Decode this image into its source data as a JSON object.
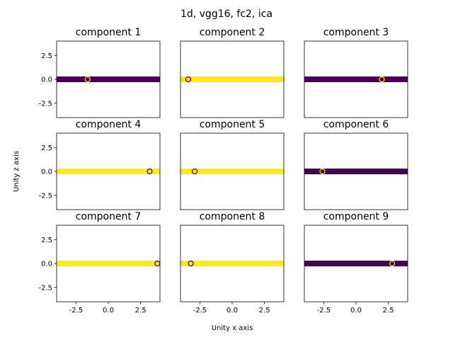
{
  "figure": {
    "suptitle": "1d, vgg16, fc2, ica",
    "xlabel": "Unity x axis",
    "ylabel": "Unity z axis"
  },
  "colors": {
    "purple": "#440154",
    "yellow": "#fde725"
  },
  "chart_data": [
    {
      "type": "scatter",
      "title": "component 1",
      "xlim": [
        -4,
        4
      ],
      "ylim": [
        -4,
        4
      ],
      "xticks": [],
      "yticks": [
        "-2.5",
        "0.0",
        "2.5"
      ],
      "band_color": "#440154",
      "marker_x": -1.6,
      "marker_y": 0.0,
      "marker_color": "#fde725"
    },
    {
      "type": "scatter",
      "title": "component 2",
      "xlim": [
        -4,
        4
      ],
      "ylim": [
        -4,
        4
      ],
      "xticks": [],
      "yticks": [],
      "band_color": "#fde725",
      "marker_x": -3.4,
      "marker_y": 0.0,
      "marker_color": "#440154"
    },
    {
      "type": "scatter",
      "title": "component 3",
      "xlim": [
        -4,
        4
      ],
      "ylim": [
        -4,
        4
      ],
      "xticks": [],
      "yticks": [],
      "band_color": "#440154",
      "marker_x": 2.0,
      "marker_y": 0.0,
      "marker_color": "#fde725"
    },
    {
      "type": "scatter",
      "title": "component 4",
      "xlim": [
        -4,
        4
      ],
      "ylim": [
        -4,
        4
      ],
      "xticks": [],
      "yticks": [
        "-2.5",
        "0.0",
        "2.5"
      ],
      "band_color": "#fde725",
      "marker_x": 3.2,
      "marker_y": 0.0,
      "marker_color": "#440154"
    },
    {
      "type": "scatter",
      "title": "component 5",
      "xlim": [
        -4,
        4
      ],
      "ylim": [
        -4,
        4
      ],
      "xticks": [],
      "yticks": [],
      "band_color": "#fde725",
      "marker_x": -2.9,
      "marker_y": 0.0,
      "marker_color": "#440154"
    },
    {
      "type": "scatter",
      "title": "component 6",
      "xlim": [
        -4,
        4
      ],
      "ylim": [
        -4,
        4
      ],
      "xticks": [],
      "yticks": [],
      "band_color": "#440154",
      "marker_x": -2.6,
      "marker_y": 0.0,
      "marker_color": "#fde725"
    },
    {
      "type": "scatter",
      "title": "component 7",
      "xlim": [
        -4,
        4
      ],
      "ylim": [
        -4,
        4
      ],
      "xticks": [
        "-2.5",
        "0.0",
        "2.5"
      ],
      "yticks": [
        "-2.5",
        "0.0",
        "2.5"
      ],
      "band_color": "#fde725",
      "marker_x": 3.8,
      "marker_y": 0.0,
      "marker_color": "#440154"
    },
    {
      "type": "scatter",
      "title": "component 8",
      "xlim": [
        -4,
        4
      ],
      "ylim": [
        -4,
        4
      ],
      "xticks": [
        "-2.5",
        "0.0",
        "2.5"
      ],
      "yticks": [],
      "band_color": "#fde725",
      "marker_x": -3.2,
      "marker_y": 0.0,
      "marker_color": "#440154"
    },
    {
      "type": "scatter",
      "title": "component 9",
      "xlim": [
        -4,
        4
      ],
      "ylim": [
        -4,
        4
      ],
      "xticks": [
        "-2.5",
        "0.0",
        "2.5"
      ],
      "yticks": [],
      "band_color": "#440154",
      "marker_x": 2.8,
      "marker_y": 0.0,
      "marker_color": "#fde725"
    }
  ]
}
